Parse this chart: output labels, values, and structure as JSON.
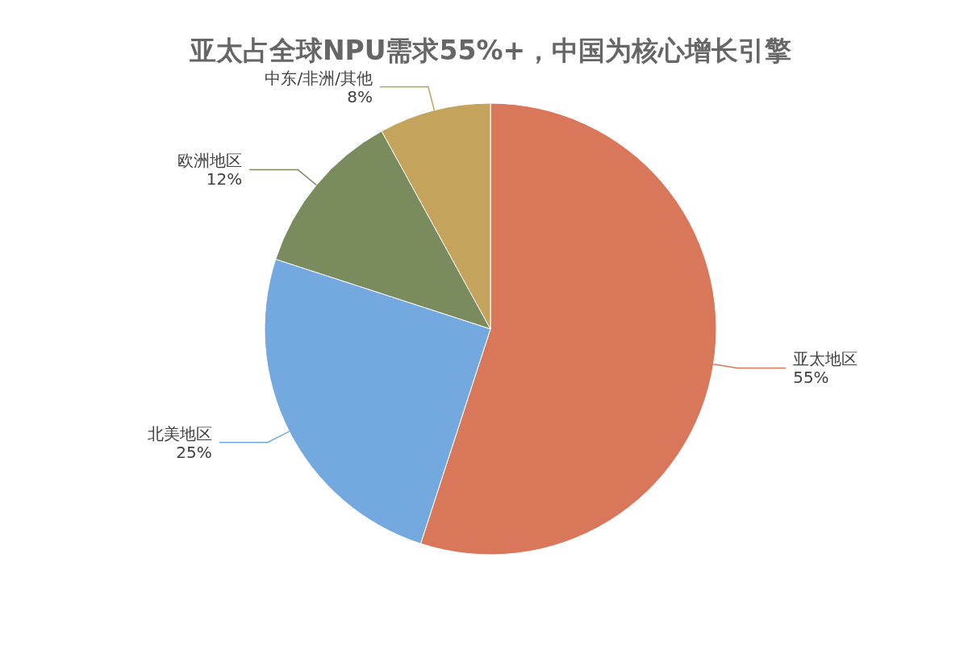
{
  "chart_data": {
    "type": "pie",
    "title": "亚太占全球NPU需求55%+，中国为核心增长引擎",
    "categories": [
      "亚太地区",
      "北美地区",
      "欧洲地区",
      "中东/非洲/其他"
    ],
    "values": [
      55,
      25,
      12,
      8
    ],
    "value_labels": [
      "55%",
      "25%",
      "12%",
      "8%"
    ],
    "colors": [
      "#d9775a",
      "#74a9df",
      "#7a8b5e",
      "#c4a35c"
    ],
    "legend": false
  }
}
